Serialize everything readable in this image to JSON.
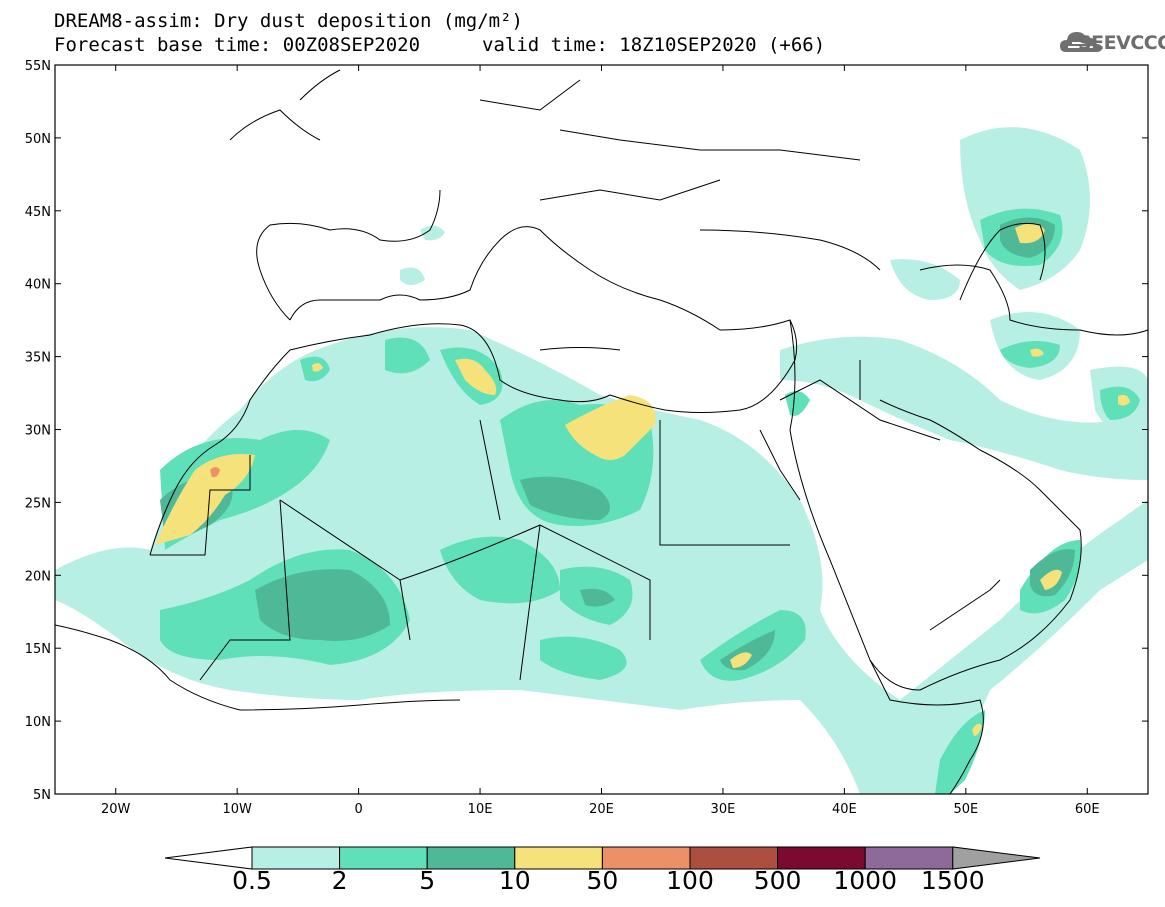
{
  "header": {
    "title_line1": "DREAM8-assim: Dry dust deposition (mg/m²)",
    "title_line2": "Forecast base time: 00Z08SEP2020",
    "valid_time": "valid time: 18Z10SEP2020 (+66)",
    "logo_text": "SEEVCCC",
    "logo_icon": "cloud-icon"
  },
  "map": {
    "lon_range": [
      -25,
      65
    ],
    "lat_range": [
      5,
      55
    ],
    "lat_ticks": [
      {
        "value": 55,
        "label": "55N"
      },
      {
        "value": 50,
        "label": "50N"
      },
      {
        "value": 45,
        "label": "45N"
      },
      {
        "value": 40,
        "label": "40N"
      },
      {
        "value": 35,
        "label": "35N"
      },
      {
        "value": 30,
        "label": "30N"
      },
      {
        "value": 25,
        "label": "25N"
      },
      {
        "value": 20,
        "label": "20N"
      },
      {
        "value": 15,
        "label": "15N"
      },
      {
        "value": 10,
        "label": "10N"
      },
      {
        "value": 5,
        "label": "5N"
      }
    ],
    "lon_ticks": [
      {
        "value": -20,
        "label": "20W"
      },
      {
        "value": -10,
        "label": "10W"
      },
      {
        "value": 0,
        "label": "0"
      },
      {
        "value": 10,
        "label": "10E"
      },
      {
        "value": 20,
        "label": "20E"
      },
      {
        "value": 30,
        "label": "30E"
      },
      {
        "value": 40,
        "label": "40E"
      },
      {
        "value": 50,
        "label": "50E"
      },
      {
        "value": 60,
        "label": "60E"
      }
    ]
  },
  "colorbar": {
    "colors": [
      "#b8efe4",
      "#5fe0b8",
      "#4fb896",
      "#f5e27a",
      "#ec9068",
      "#ad4f40",
      "#7c0930",
      "#8e6a9a"
    ],
    "left_arrow_color": "#ffffff",
    "right_arrow_color": "#a0a0a0",
    "labels": [
      "0.5",
      "2",
      "5",
      "10",
      "50",
      "100",
      "500",
      "1000",
      "1500"
    ]
  }
}
